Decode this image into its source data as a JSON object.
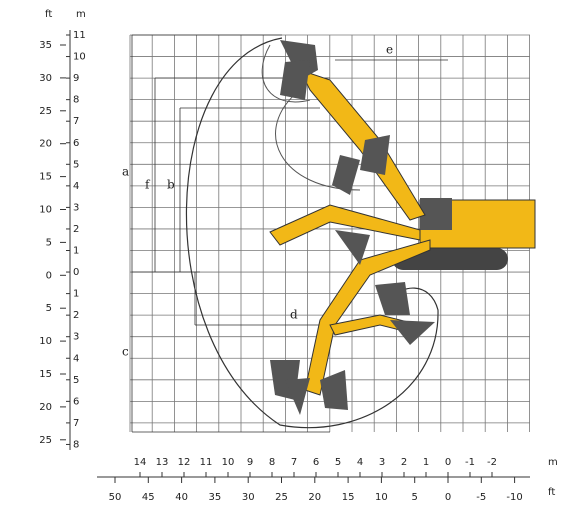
{
  "units": {
    "ft_top": "ft",
    "m_top": "m",
    "m_bottom": "m",
    "ft_bottom": "ft"
  },
  "left_ft_scale": [
    "35",
    "30",
    "25",
    "20",
    "15",
    "10",
    "5",
    "0",
    "5",
    "10",
    "15",
    "20",
    "25"
  ],
  "left_m_scale": [
    "11",
    "10",
    "9",
    "8",
    "7",
    "6",
    "5",
    "4",
    "3",
    "2",
    "1",
    "0",
    "1",
    "2",
    "3",
    "4",
    "5",
    "6",
    "7",
    "8"
  ],
  "bottom_m_scale": [
    "14",
    "13",
    "12",
    "11",
    "10",
    "9",
    "8",
    "7",
    "6",
    "5",
    "4",
    "3",
    "2",
    "1",
    "0",
    "-1",
    "-2"
  ],
  "bottom_ft_scale": [
    "50",
    "45",
    "40",
    "35",
    "30",
    "25",
    "20",
    "15",
    "10",
    "5",
    "0",
    "-5",
    "-10"
  ],
  "dimension_labels": [
    "a",
    "f",
    "b",
    "c",
    "d",
    "e"
  ]
}
